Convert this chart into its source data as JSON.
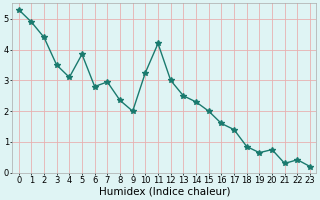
{
  "x": [
    0,
    1,
    2,
    3,
    4,
    5,
    6,
    7,
    8,
    9,
    10,
    11,
    12,
    13,
    14,
    15,
    16,
    17,
    18,
    19,
    20,
    21,
    22,
    23
  ],
  "y": [
    5.3,
    4.9,
    4.4,
    3.5,
    3.1,
    3.85,
    2.8,
    2.95,
    2.35,
    2.0,
    3.25,
    4.2,
    3.0,
    2.5,
    2.3,
    2.0,
    1.6,
    1.4,
    0.85,
    0.65,
    0.75,
    0.3,
    0.42,
    0.2
  ],
  "xlabel": "Humidex (Indice chaleur)",
  "ylim": [
    0,
    5.5
  ],
  "xlim": [
    -0.5,
    23.5
  ],
  "yticks": [
    0,
    1,
    2,
    3,
    4,
    5
  ],
  "xticks": [
    0,
    1,
    2,
    3,
    4,
    5,
    6,
    7,
    8,
    9,
    10,
    11,
    12,
    13,
    14,
    15,
    16,
    17,
    18,
    19,
    20,
    21,
    22,
    23
  ],
  "line_color": "#1a7a6e",
  "marker": "*",
  "marker_size": 4,
  "bg_color": "#dff4f4",
  "grid_color": "#e8b0b0",
  "tick_label_fontsize": 6,
  "xlabel_fontsize": 7.5,
  "linewidth": 1.0
}
